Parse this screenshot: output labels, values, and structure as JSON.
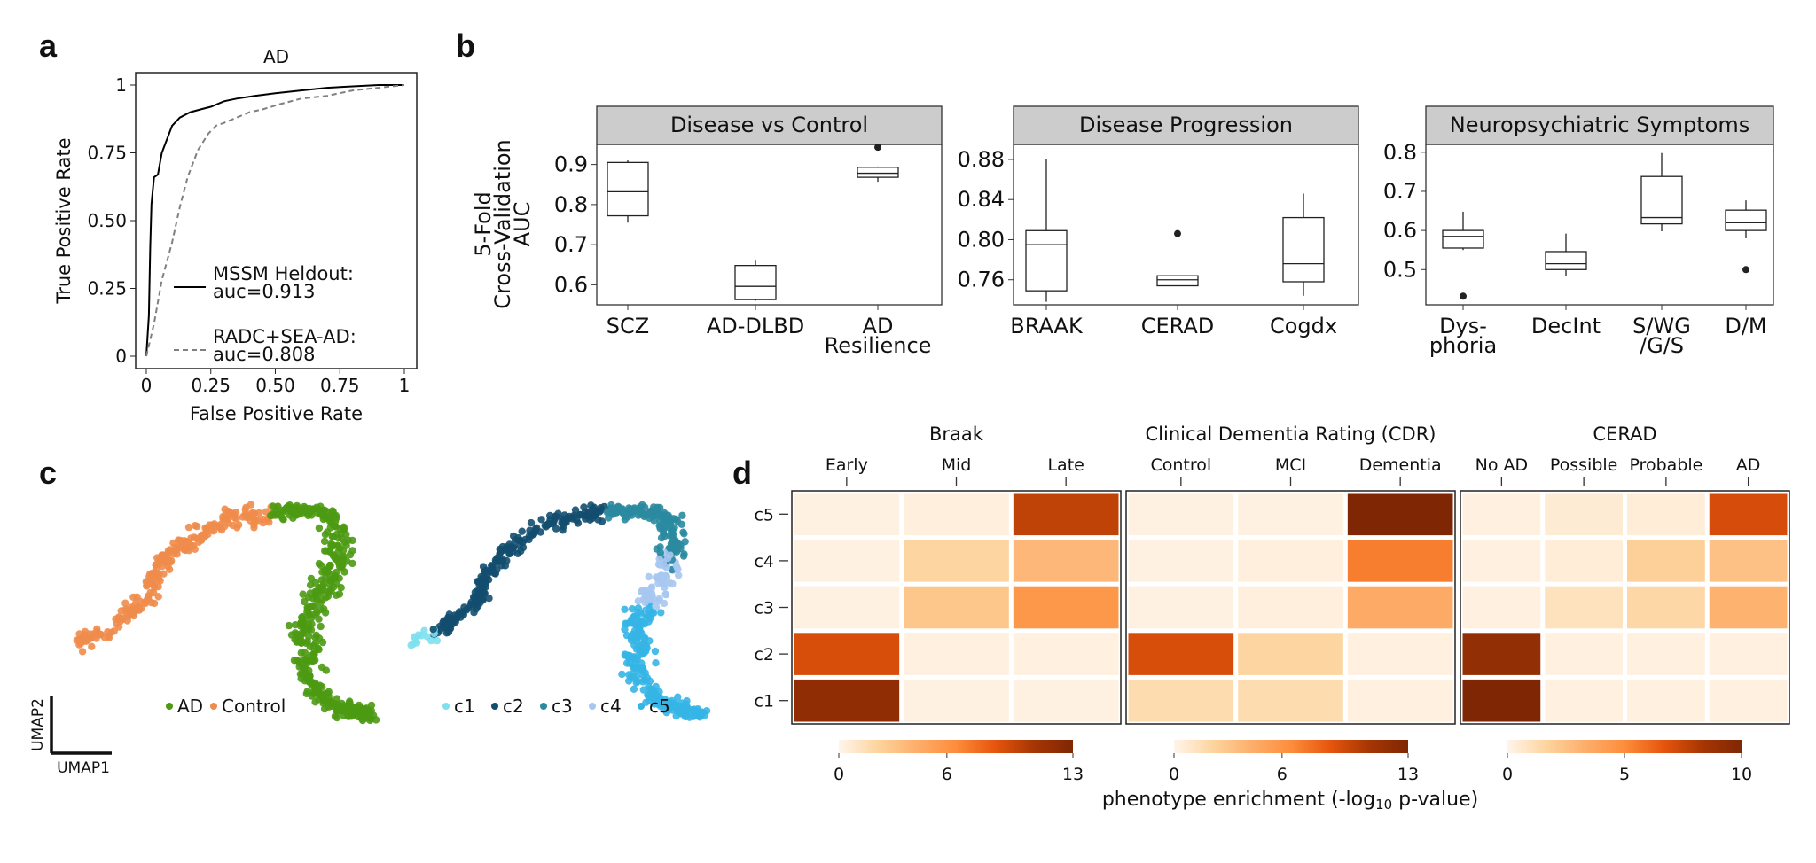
{
  "panel_labels": {
    "a": "a",
    "b": "b",
    "c": "c",
    "d": "d"
  },
  "chart_data": [
    {
      "type": "line",
      "panel": "a",
      "title": "AD",
      "xlabel": "False Positive Rate",
      "ylabel": "True Positive Rate",
      "xlim": [
        0,
        1
      ],
      "ylim": [
        0,
        1
      ],
      "xticks": [
        "0",
        "0.25",
        "0.50",
        "0.75",
        "1"
      ],
      "yticks": [
        "0",
        "0.25",
        "0.50",
        "0.75",
        "1"
      ],
      "legend_position": "bottom-right",
      "series": [
        {
          "name": "MSSM Heldout:",
          "sublabel": "auc=0.913",
          "color": "#000000",
          "dash": "solid",
          "points": [
            [
              0,
              0
            ],
            [
              0.01,
              0.15
            ],
            [
              0.015,
              0.4
            ],
            [
              0.02,
              0.56
            ],
            [
              0.03,
              0.66
            ],
            [
              0.045,
              0.67
            ],
            [
              0.06,
              0.75
            ],
            [
              0.08,
              0.8
            ],
            [
              0.1,
              0.85
            ],
            [
              0.13,
              0.88
            ],
            [
              0.17,
              0.9
            ],
            [
              0.21,
              0.91
            ],
            [
              0.25,
              0.92
            ],
            [
              0.3,
              0.94
            ],
            [
              0.35,
              0.95
            ],
            [
              0.42,
              0.96
            ],
            [
              0.5,
              0.97
            ],
            [
              0.6,
              0.98
            ],
            [
              0.7,
              0.99
            ],
            [
              0.8,
              0.995
            ],
            [
              0.9,
              1
            ],
            [
              1,
              1
            ]
          ]
        },
        {
          "name": "RADC+SEA-AD:",
          "sublabel": "auc=0.808",
          "color": "#808080",
          "dash": "dashed",
          "points": [
            [
              0,
              0
            ],
            [
              0.03,
              0.12
            ],
            [
              0.06,
              0.28
            ],
            [
              0.1,
              0.42
            ],
            [
              0.13,
              0.55
            ],
            [
              0.16,
              0.66
            ],
            [
              0.2,
              0.76
            ],
            [
              0.24,
              0.82
            ],
            [
              0.27,
              0.85
            ],
            [
              0.3,
              0.86
            ],
            [
              0.35,
              0.88
            ],
            [
              0.4,
              0.9
            ],
            [
              0.45,
              0.91
            ],
            [
              0.52,
              0.93
            ],
            [
              0.6,
              0.95
            ],
            [
              0.7,
              0.96
            ],
            [
              0.8,
              0.98
            ],
            [
              0.9,
              0.99
            ],
            [
              1,
              1
            ]
          ]
        }
      ]
    },
    {
      "type": "box",
      "panel": "b",
      "ylabel_lines": [
        "5-Fold",
        "Cross-Validation",
        "AUC"
      ],
      "facets": [
        {
          "title": "Disease vs Control",
          "ylim": [
            0.55,
            0.95
          ],
          "yticks": [
            0.6,
            0.7,
            0.8,
            0.9
          ],
          "ytick_labels": [
            "0.6",
            "0.7",
            "0.8",
            "0.9"
          ],
          "boxes": [
            {
              "label": "SCZ",
              "min": 0.755,
              "q1": 0.772,
              "median": 0.832,
              "q3": 0.905,
              "max": 0.91,
              "outliers": []
            },
            {
              "label": "AD-DLBD",
              "min": 0.56,
              "q1": 0.563,
              "median": 0.596,
              "q3": 0.648,
              "max": 0.66,
              "outliers": []
            },
            {
              "label": "AD Resilience",
              "label_lines": [
                "AD",
                "Resilience"
              ],
              "min": 0.857,
              "q1": 0.868,
              "median": 0.878,
              "q3": 0.893,
              "max": 0.895,
              "outliers": [
                0.943
              ]
            }
          ]
        },
        {
          "title": "Disease Progression",
          "ylim": [
            0.735,
            0.895
          ],
          "yticks": [
            0.76,
            0.8,
            0.84,
            0.88
          ],
          "ytick_labels": [
            "0.76",
            "0.80",
            "0.84",
            "0.88"
          ],
          "boxes": [
            {
              "label": "BRAAK",
              "min": 0.738,
              "q1": 0.749,
              "median": 0.795,
              "q3": 0.809,
              "max": 0.88,
              "outliers": []
            },
            {
              "label": "CERAD",
              "min": 0.754,
              "q1": 0.754,
              "median": 0.76,
              "q3": 0.764,
              "max": 0.764,
              "outliers": [
                0.806
              ]
            },
            {
              "label": "Cogdx",
              "min": 0.744,
              "q1": 0.758,
              "median": 0.776,
              "q3": 0.822,
              "max": 0.846,
              "outliers": []
            }
          ]
        },
        {
          "title": "Neuropsychiatric Symptoms",
          "ylim": [
            0.41,
            0.82
          ],
          "yticks": [
            0.5,
            0.6,
            0.7,
            0.8
          ],
          "ytick_labels": [
            "0.5",
            "0.6",
            "0.7",
            "0.8"
          ],
          "boxes": [
            {
              "label": "Dysphoria",
              "label_lines": [
                "Dys-",
                "phoria"
              ],
              "min": 0.55,
              "q1": 0.555,
              "median": 0.585,
              "q3": 0.6,
              "max": 0.648,
              "outliers": [
                0.432
              ]
            },
            {
              "label": "DecInt",
              "label_lines": [
                "DecInt"
              ],
              "min": 0.483,
              "q1": 0.5,
              "median": 0.515,
              "q3": 0.546,
              "max": 0.592,
              "outliers": []
            },
            {
              "label": "S/WG/G/S",
              "label_lines": [
                "S/WG",
                "/G/S"
              ],
              "min": 0.598,
              "q1": 0.617,
              "median": 0.633,
              "q3": 0.738,
              "max": 0.798,
              "outliers": []
            },
            {
              "label": "D/M",
              "label_lines": [
                "D/M"
              ],
              "min": 0.58,
              "q1": 0.6,
              "median": 0.62,
              "q3": 0.652,
              "max": 0.677,
              "outliers": [
                0.5
              ]
            }
          ]
        }
      ]
    },
    {
      "type": "scatter",
      "panel": "c",
      "axis_labels": {
        "x": "UMAP1",
        "y": "UMAP2"
      },
      "plots": [
        {
          "legend": [
            {
              "name": "AD",
              "color": "#4d9a13"
            },
            {
              "name": "Control",
              "color": "#ef8c4b"
            }
          ]
        },
        {
          "legend": [
            {
              "name": "c1",
              "color": "#7ee0ee"
            },
            {
              "name": "c2",
              "color": "#134e6f"
            },
            {
              "name": "c3",
              "color": "#2a8aa0"
            },
            {
              "name": "c4",
              "color": "#a7c6f1"
            },
            {
              "name": "c5",
              "color": "#35b5e6"
            }
          ]
        }
      ]
    },
    {
      "type": "heatmap",
      "panel": "d",
      "rows": [
        "c5",
        "c4",
        "c3",
        "c2",
        "c1"
      ],
      "colorbar_label_main": "phenotype enrichment (-log",
      "colorbar_label_sub": "10",
      "colorbar_label_tail": " p-value)",
      "palette": [
        "#fff5eb",
        "#fdd49e",
        "#fdae6b",
        "#fd8d3c",
        "#e6550d",
        "#a63603",
        "#7f2704"
      ],
      "blocks": [
        {
          "title": "Braak",
          "columns": [
            "Early",
            "Mid",
            "Late"
          ],
          "vmax": 13,
          "colorbar_ticks": [
            "0",
            "6",
            "13"
          ],
          "values": [
            [
              0.3,
              0.5,
              12.0
            ],
            [
              0.3,
              2.5,
              4.5
            ],
            [
              0.3,
              3.5,
              7.0
            ],
            [
              11.0,
              0.4,
              0.4
            ],
            [
              14.5,
              0.3,
              0.3
            ]
          ]
        },
        {
          "title": "Clinical Dementia Rating (CDR)",
          "columns": [
            "Control",
            "MCI",
            "Dementia"
          ],
          "vmax": 13,
          "colorbar_ticks": [
            "0",
            "6",
            "13"
          ],
          "values": [
            [
              0.3,
              0.3,
              16.0
            ],
            [
              0.3,
              0.5,
              8.5
            ],
            [
              0.3,
              0.5,
              5.5
            ],
            [
              11.0,
              2.5,
              0.4
            ],
            [
              2.0,
              2.0,
              0.4
            ]
          ]
        },
        {
          "title": "CERAD",
          "columns": [
            "No AD",
            "Possible",
            "Probable",
            "AD"
          ],
          "vmax": 10,
          "colorbar_ticks": [
            "0",
            "5",
            "10"
          ],
          "values": [
            [
              0.3,
              0.6,
              0.5,
              8.5
            ],
            [
              0.3,
              0.5,
              2.2,
              3.0
            ],
            [
              0.3,
              1.2,
              1.8,
              3.8
            ],
            [
              11.0,
              0.3,
              0.3,
              0.3
            ],
            [
              12.0,
              0.3,
              0.3,
              0.3
            ]
          ]
        }
      ]
    }
  ]
}
